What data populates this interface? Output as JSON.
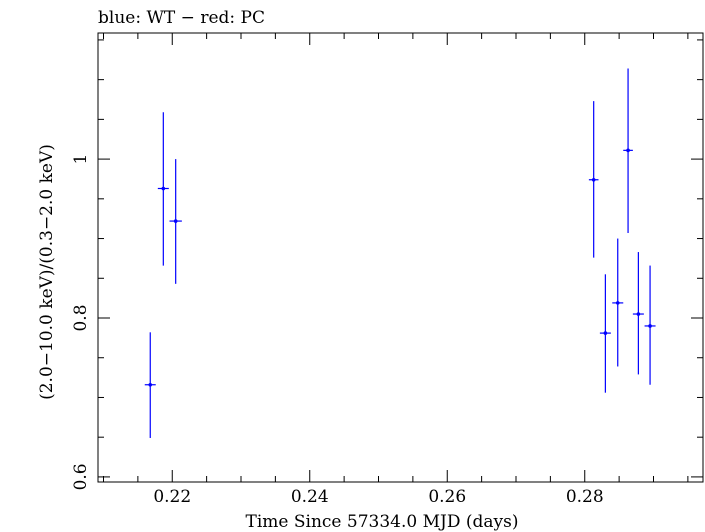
{
  "chart_data": {
    "type": "scatter",
    "title": "blue: WT − red: PC",
    "xlabel": "Time Since 57334.0 MJD (days)",
    "ylabel": "(2.0−10.0 keV)/(0.3−2.0 keV)",
    "xlim": [
      0.2092,
      0.2972
    ],
    "ylim": [
      0.5936,
      1.1587
    ],
    "xticks": [
      0.22,
      0.24,
      0.26,
      0.28
    ],
    "xtick_labels": [
      "0.22",
      "0.24",
      "0.26",
      "0.28"
    ],
    "yticks": [
      0.6,
      0.8,
      1.0
    ],
    "ytick_labels": [
      "0.6",
      "0.8",
      "1"
    ],
    "color": "#0000ff",
    "series": [
      {
        "points": [
          {
            "x": 0.2168,
            "y": 0.716,
            "xerr": 0.0008,
            "ylo": 0.649,
            "yhi": 0.782
          },
          {
            "x": 0.2187,
            "y": 0.963,
            "xerr": 0.0008,
            "ylo": 0.866,
            "yhi": 1.059
          },
          {
            "x": 0.2205,
            "y": 0.922,
            "xerr": 0.0009,
            "ylo": 0.843,
            "yhi": 1.0
          },
          {
            "x": 0.2813,
            "y": 0.974,
            "xerr": 0.0007,
            "ylo": 0.876,
            "yhi": 1.073
          },
          {
            "x": 0.283,
            "y": 0.781,
            "xerr": 0.0008,
            "ylo": 0.706,
            "yhi": 0.855
          },
          {
            "x": 0.2848,
            "y": 0.819,
            "xerr": 0.0008,
            "ylo": 0.739,
            "yhi": 0.9
          },
          {
            "x": 0.2863,
            "y": 1.011,
            "xerr": 0.0007,
            "ylo": 0.907,
            "yhi": 1.114
          },
          {
            "x": 0.2878,
            "y": 0.805,
            "xerr": 0.0008,
            "ylo": 0.729,
            "yhi": 0.883
          },
          {
            "x": 0.2895,
            "y": 0.79,
            "xerr": 0.0008,
            "ylo": 0.716,
            "yhi": 0.866
          }
        ]
      }
    ]
  }
}
